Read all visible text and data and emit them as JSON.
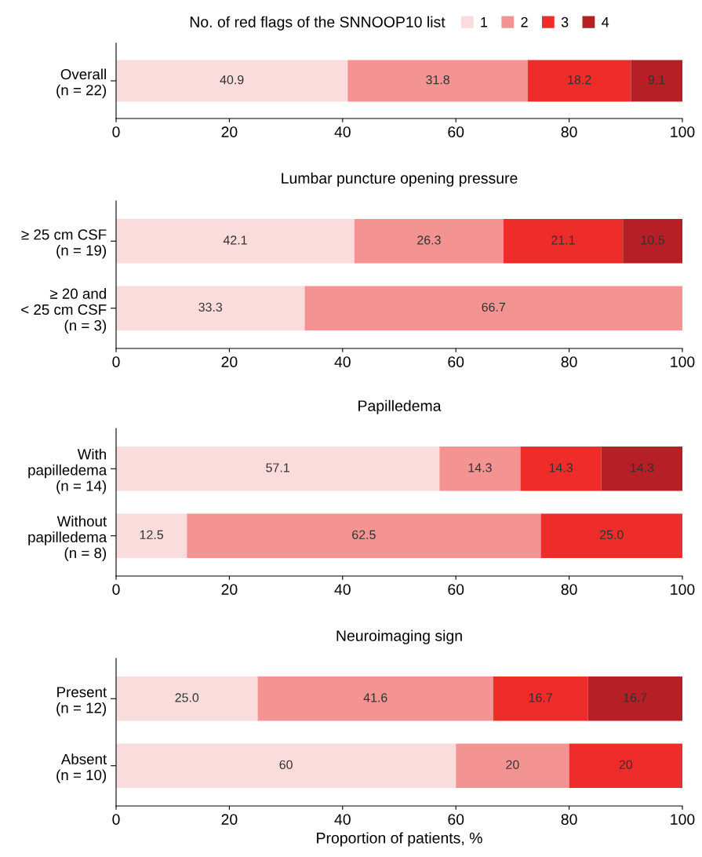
{
  "chart_data": [
    {
      "type": "bar",
      "orientation": "horizontal",
      "stacked": true,
      "legend_title": "No. of red flags of the SNNOOP10 list",
      "legend": "top",
      "data_labels": true,
      "grid": false,
      "categories": [
        "Overall\n(n = 22)"
      ],
      "xlim": [
        0,
        100
      ],
      "xticks": [
        0,
        20,
        40,
        60,
        80,
        100
      ],
      "series": [
        {
          "name": "1",
          "color": "#fadcdc",
          "values": [
            40.9
          ]
        },
        {
          "name": "2",
          "color": "#f49492",
          "values": [
            31.8
          ]
        },
        {
          "name": "3",
          "color": "#ee2c2a",
          "values": [
            18.2
          ]
        },
        {
          "name": "4",
          "color": "#b61f25",
          "values": [
            9.1
          ]
        }
      ]
    },
    {
      "type": "bar",
      "orientation": "horizontal",
      "stacked": true,
      "title": "Lumbar puncture opening pressure",
      "data_labels": true,
      "grid": false,
      "categories": [
        "≥ 25 cm CSF\n(n = 19)",
        "≥ 20 and\n< 25 cm CSF\n(n = 3)"
      ],
      "xlim": [
        0,
        100
      ],
      "xticks": [
        0,
        20,
        40,
        60,
        80,
        100
      ],
      "series": [
        {
          "color": "#fadcdc",
          "values": [
            42.1,
            33.3
          ]
        },
        {
          "color": "#f49492",
          "values": [
            26.3,
            66.7
          ]
        },
        {
          "color": "#ee2c2a",
          "values": [
            21.1,
            null
          ]
        },
        {
          "color": "#b61f25",
          "values": [
            10.5,
            null
          ]
        }
      ]
    },
    {
      "type": "bar",
      "orientation": "horizontal",
      "stacked": true,
      "title": "Papilledema",
      "data_labels": true,
      "grid": false,
      "categories": [
        "With\npapilledema\n(n = 14)",
        "Without\npapilledema\n(n = 8)"
      ],
      "xlim": [
        0,
        100
      ],
      "xticks": [
        0,
        20,
        40,
        60,
        80,
        100
      ],
      "series": [
        {
          "color": "#fadcdc",
          "values": [
            57.1,
            12.5
          ]
        },
        {
          "color": "#f49492",
          "values": [
            14.3,
            62.5
          ]
        },
        {
          "color": "#ee2c2a",
          "values": [
            14.3,
            25.0
          ],
          "value_labels": [
            "14.3",
            "25.0"
          ]
        },
        {
          "color": "#b61f25",
          "values": [
            14.3,
            null
          ]
        }
      ]
    },
    {
      "type": "bar",
      "orientation": "horizontal",
      "stacked": true,
      "title": "Neuroimaging sign",
      "xlabel": "Proportion of patients, %",
      "data_labels": true,
      "grid": false,
      "categories": [
        "Present\n(n = 12)",
        "Absent\n(n = 10)"
      ],
      "xlim": [
        0,
        100
      ],
      "xticks": [
        0,
        20,
        40,
        60,
        80,
        100
      ],
      "series": [
        {
          "color": "#fadcdc",
          "values": [
            25.0,
            60
          ],
          "value_labels": [
            "25.0",
            "60"
          ]
        },
        {
          "color": "#f49492",
          "values": [
            41.6,
            20
          ]
        },
        {
          "color": "#ee2c2a",
          "values": [
            16.7,
            20
          ]
        },
        {
          "color": "#b61f25",
          "values": [
            16.7,
            null
          ]
        }
      ]
    }
  ]
}
